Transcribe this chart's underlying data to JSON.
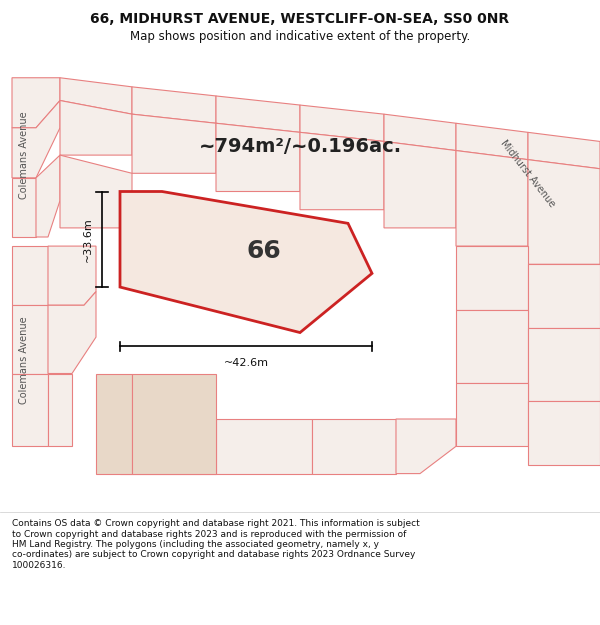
{
  "title_line1": "66, MIDHURST AVENUE, WESTCLIFF-ON-SEA, SS0 0NR",
  "title_line2": "Map shows position and indicative extent of the property.",
  "area_text": "~794m²/~0.196ac.",
  "label_66": "66",
  "dim_vertical": "~33.6m",
  "dim_horizontal": "~42.6m",
  "street_left_top": "Colemans Avenue",
  "street_left_bottom": "Colemans Avenue",
  "street_right": "Midhurst Avenue",
  "copyright_text": "Contains OS data © Crown copyright and database right 2021. This information is subject\nto Crown copyright and database rights 2023 and is reproduced with the permission of\nHM Land Registry. The polygons (including the associated geometry, namely x, y\nco-ordinates) are subject to Crown copyright and database rights 2023 Ordnance Survey\n100026316.",
  "bg_map_color": "#f5f0ec",
  "plot_fill_color": "#f5e8e0",
  "plot_edge_color": "#cc2222",
  "parcel_edge_color": "#e88080",
  "parcel_fill_color": "#f5eeea",
  "title_bg_color": "#ffffff",
  "footer_bg_color": "#ffffff",
  "map_bg_color": "#f2ece6"
}
